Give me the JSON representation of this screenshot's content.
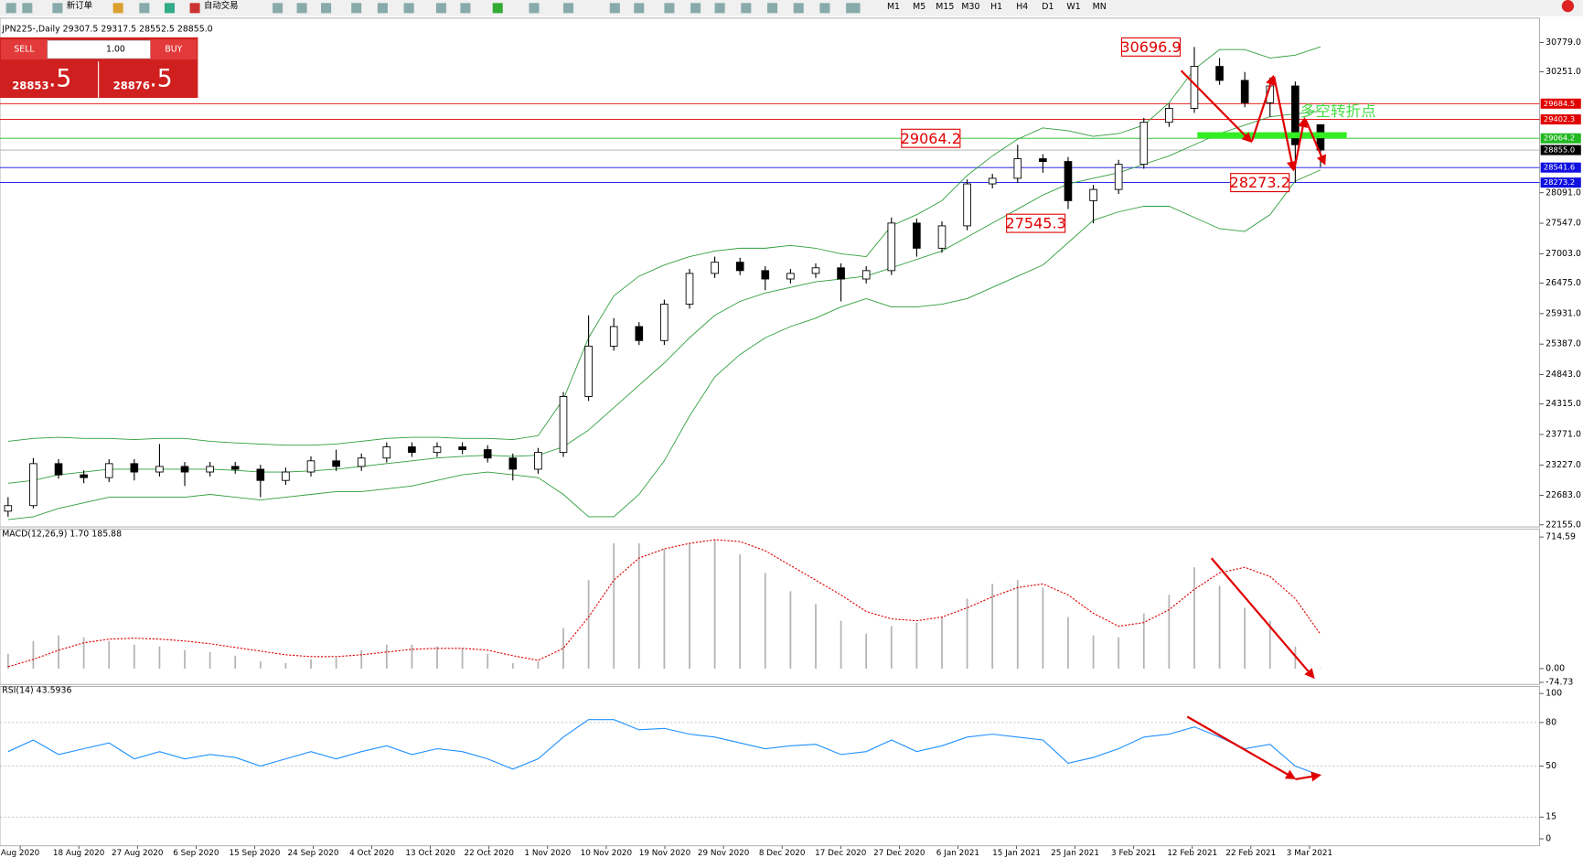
{
  "toolbar": {
    "new_order": "新订单",
    "auto_trading": "自动交易",
    "timeframes": [
      "M1",
      "M5",
      "M15",
      "M30",
      "H1",
      "H4",
      "D1",
      "W1",
      "MN"
    ]
  },
  "trade_panel": {
    "sell": "SELL",
    "lot": "1.00",
    "buy": "BUY",
    "sell_price": "28853",
    "sell_price_frac": ".5",
    "buy_price": "28876",
    "buy_price_frac": ".5"
  },
  "chart_data": [
    {
      "type": "candlestick",
      "title": "JPN225-,Daily 29307.5 29317.5 28552.5 28855.0",
      "open": [
        22400,
        22500,
        23250,
        23050,
        23000,
        23250,
        23100,
        23200,
        23100,
        23200,
        23150,
        22950,
        23100,
        23300,
        23200,
        23350,
        23550,
        23450,
        23550,
        23500,
        23350,
        23150,
        23450,
        24450,
        25350,
        25700,
        25450,
        26100,
        26650,
        26850,
        26700,
        26550,
        26650,
        26750,
        26550,
        26700,
        27550,
        27100,
        27500,
        28250,
        28350,
        28700,
        28650,
        27950,
        28150,
        28600,
        29350,
        29600,
        30350,
        30100,
        29700,
        30000,
        29307.5
      ],
      "high": [
        22650,
        23350,
        23330,
        23130,
        23330,
        23330,
        23600,
        23280,
        23280,
        23280,
        23230,
        23180,
        23380,
        23500,
        23430,
        23630,
        23630,
        23630,
        23630,
        23580,
        23430,
        23530,
        24530,
        25900,
        25850,
        25780,
        26180,
        26730,
        26950,
        26930,
        26780,
        26730,
        26830,
        26830,
        26780,
        27650,
        27630,
        27580,
        28330,
        28430,
        28950,
        28780,
        28730,
        28230,
        28680,
        29430,
        29680,
        30696.9,
        30500,
        30250,
        30150,
        30080,
        29317.5
      ],
      "low": [
        22300,
        22450,
        22980,
        22900,
        22920,
        22950,
        23020,
        22850,
        23020,
        23070,
        22650,
        22870,
        23020,
        23120,
        23120,
        23270,
        23370,
        23370,
        23420,
        23270,
        22950,
        23070,
        23370,
        24370,
        25270,
        25370,
        25370,
        26020,
        26570,
        26620,
        26350,
        26470,
        26570,
        26150,
        26470,
        26620,
        26950,
        27020,
        27420,
        28170,
        28270,
        28450,
        27800,
        27545.3,
        28070,
        28520,
        29270,
        29520,
        30020,
        29620,
        29450,
        28273.2,
        28552.5
      ],
      "close": [
        22500,
        23250,
        23050,
        23000,
        23250,
        23100,
        23200,
        23100,
        23200,
        23150,
        22950,
        23100,
        23300,
        23200,
        23350,
        23550,
        23450,
        23550,
        23500,
        23350,
        23150,
        23450,
        24450,
        25350,
        25700,
        25450,
        26100,
        26650,
        26850,
        26700,
        26550,
        26650,
        26750,
        26550,
        26700,
        27550,
        27100,
        27500,
        28250,
        28350,
        28700,
        28650,
        27950,
        28150,
        28600,
        29350,
        29600,
        30350,
        30100,
        29700,
        30000,
        28950,
        28855
      ],
      "bollinger": {
        "color": "#2e9e3a",
        "upper": [
          23650,
          23700,
          23720,
          23700,
          23700,
          23680,
          23700,
          23700,
          23650,
          23620,
          23600,
          23580,
          23580,
          23600,
          23650,
          23700,
          23720,
          23720,
          23700,
          23700,
          23680,
          23750,
          24400,
          25500,
          26250,
          26600,
          26800,
          26950,
          27050,
          27100,
          27100,
          27150,
          27100,
          27000,
          26950,
          27500,
          27700,
          27950,
          28400,
          28750,
          29050,
          29250,
          29200,
          29100,
          29150,
          29300,
          29700,
          30300,
          30650,
          30650,
          30500,
          30550,
          30700
        ],
        "middle": [
          22900,
          22950,
          23050,
          23100,
          23150,
          23150,
          23150,
          23150,
          23150,
          23130,
          23100,
          23100,
          23120,
          23150,
          23200,
          23250,
          23300,
          23350,
          23380,
          23400,
          23380,
          23400,
          23550,
          23850,
          24250,
          24650,
          25050,
          25500,
          25900,
          26150,
          26300,
          26400,
          26500,
          26550,
          26600,
          26750,
          26900,
          27050,
          27300,
          27550,
          27800,
          28050,
          28250,
          28350,
          28450,
          28600,
          28750,
          28950,
          29150,
          29300,
          29450,
          29500,
          29550
        ],
        "lower": [
          22250,
          22300,
          22450,
          22550,
          22650,
          22650,
          22650,
          22650,
          22700,
          22650,
          22600,
          22650,
          22700,
          22750,
          22750,
          22800,
          22850,
          22950,
          23050,
          23100,
          23050,
          23000,
          22700,
          22300,
          22300,
          22700,
          23300,
          24100,
          24800,
          25200,
          25500,
          25700,
          25850,
          26050,
          26200,
          26050,
          26050,
          26100,
          26200,
          26400,
          26600,
          26800,
          27200,
          27600,
          27750,
          27850,
          27850,
          27650,
          27450,
          27400,
          27700,
          28300,
          28500
        ]
      },
      "ylim": [
        22155,
        30779
      ],
      "yticks": [
        {
          "value": 30779,
          "label": "30779.0"
        },
        {
          "value": 30251,
          "label": "30251.0"
        },
        {
          "value": 28091,
          "label": "28091.0"
        },
        {
          "value": 27547,
          "label": "27547.0"
        },
        {
          "value": 27003,
          "label": "27003.0"
        },
        {
          "value": 26475,
          "label": "26475.0"
        },
        {
          "value": 25931,
          "label": "25931.0"
        },
        {
          "value": 25387,
          "label": "25387.0"
        },
        {
          "value": 24843,
          "label": "24843.0"
        },
        {
          "value": 24315,
          "label": "24315.0"
        },
        {
          "value": 23771,
          "label": "23771.0"
        },
        {
          "value": 23227,
          "label": "23227.0"
        },
        {
          "value": 22683,
          "label": "22683.0"
        },
        {
          "value": 22155,
          "label": "22155.0"
        }
      ],
      "price_lines": [
        {
          "value": 29684.5,
          "color": "#e00000"
        },
        {
          "value": 29402.3,
          "color": "#e00000"
        },
        {
          "value": 29064.2,
          "color": "#22b822"
        },
        {
          "value": {
            "value": 28855,
            "label": "28855.0"
          },
          "color": "#000000"
        },
        {
          "value": 28541.6,
          "color": "#1010e0"
        },
        {
          "value": 28273.2,
          "color": "#1010e0"
        }
      ],
      "annotations": [
        30696.9,
        29064.2,
        28273.2,
        27545.3
      ],
      "callout": "多空转折点"
    },
    {
      "type": "macd",
      "title": "MACD(12,26,9) 1.70 185.88",
      "histogram": [
        80,
        150,
        180,
        170,
        150,
        130,
        120,
        100,
        90,
        70,
        40,
        30,
        50,
        60,
        100,
        130,
        130,
        120,
        110,
        80,
        30,
        40,
        220,
        480,
        680,
        680,
        650,
        680,
        700,
        620,
        520,
        420,
        350,
        260,
        190,
        230,
        250,
        280,
        380,
        460,
        480,
        440,
        280,
        180,
        170,
        300,
        400,
        550,
        450,
        330,
        260,
        120,
        1.7
      ],
      "signal": [
        10,
        50,
        100,
        140,
        160,
        165,
        160,
        150,
        135,
        115,
        95,
        75,
        65,
        65,
        75,
        90,
        105,
        110,
        110,
        100,
        70,
        45,
        110,
        280,
        480,
        600,
        650,
        680,
        700,
        690,
        640,
        560,
        480,
        400,
        310,
        270,
        260,
        280,
        330,
        390,
        440,
        460,
        400,
        300,
        230,
        250,
        320,
        430,
        520,
        550,
        500,
        380,
        185.88
      ],
      "histogram_color": "#b4b4b4",
      "signal_color": "#e00000",
      "ylim": [
        -74.73,
        714.59
      ],
      "yticks": [
        714.59,
        {
          "value": 0,
          "label": "0.00"
        },
        -74.73
      ]
    },
    {
      "type": "line",
      "title": "RSI(14) 43.5936",
      "values": [
        60,
        68,
        58,
        62,
        66,
        55,
        60,
        55,
        58,
        56,
        50,
        55,
        60,
        55,
        60,
        64,
        58,
        62,
        60,
        55,
        48,
        55,
        70,
        82,
        82,
        75,
        76,
        72,
        70,
        66,
        62,
        64,
        65,
        58,
        60,
        68,
        60,
        64,
        70,
        72,
        70,
        68,
        52,
        56,
        62,
        70,
        72,
        77,
        70,
        62,
        65,
        50,
        43.5936
      ],
      "color": "#1e90ff",
      "ylim": [
        0,
        100
      ],
      "yticks": [
        100,
        80,
        50,
        15,
        0
      ],
      "x_tick_labels": [
        "Aug 2020",
        "18 Aug 2020",
        "27 Aug 2020",
        "6 Sep 2020",
        "15 Sep 2020",
        "24 Sep 2020",
        "4 Oct 2020",
        "13 Oct 2020",
        "22 Oct 2020",
        "1 Nov 2020",
        "10 Nov 2020",
        "19 Nov 2020",
        "29 Nov 2020",
        "8 Dec 2020",
        "17 Dec 2020",
        "27 Dec 2020",
        "6 Jan 2021",
        "15 Jan 2021",
        "25 Jan 2021",
        "3 Feb 2021",
        "12 Feb 2021",
        "22 Feb 2021",
        "3 Mar 2021"
      ]
    }
  ]
}
